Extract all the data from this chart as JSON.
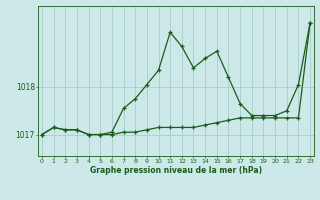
{
  "x": [
    0,
    1,
    2,
    3,
    4,
    5,
    6,
    7,
    8,
    9,
    10,
    11,
    12,
    13,
    14,
    15,
    16,
    17,
    18,
    19,
    20,
    21,
    22,
    23
  ],
  "line1": [
    1017.0,
    1017.15,
    1017.1,
    1017.1,
    1017.0,
    1017.0,
    1017.05,
    1017.55,
    1017.75,
    1018.05,
    1018.35,
    1019.15,
    1018.85,
    1018.4,
    1018.6,
    1018.75,
    1018.2,
    1017.65,
    1017.4,
    1017.4,
    1017.4,
    1017.5,
    1018.05,
    1019.35
  ],
  "line2": [
    1017.0,
    1017.15,
    1017.1,
    1017.1,
    1017.0,
    1017.0,
    1017.0,
    1017.05,
    1017.05,
    1017.1,
    1017.15,
    1017.15,
    1017.15,
    1017.15,
    1017.2,
    1017.25,
    1017.3,
    1017.35,
    1017.35,
    1017.35,
    1017.35,
    1017.35,
    1017.35,
    1019.35
  ],
  "bg_color": "#cce8e8",
  "line_color": "#1a5c1a",
  "grid_color": "#aacccc",
  "xlabel": "Graphe pression niveau de la mer (hPa)",
  "yticks": [
    1017,
    1018
  ],
  "ylim": [
    1016.55,
    1019.7
  ],
  "xlim": [
    -0.3,
    23.3
  ],
  "xlabel_color": "#1a5c1a",
  "tick_color": "#1a5c1a"
}
